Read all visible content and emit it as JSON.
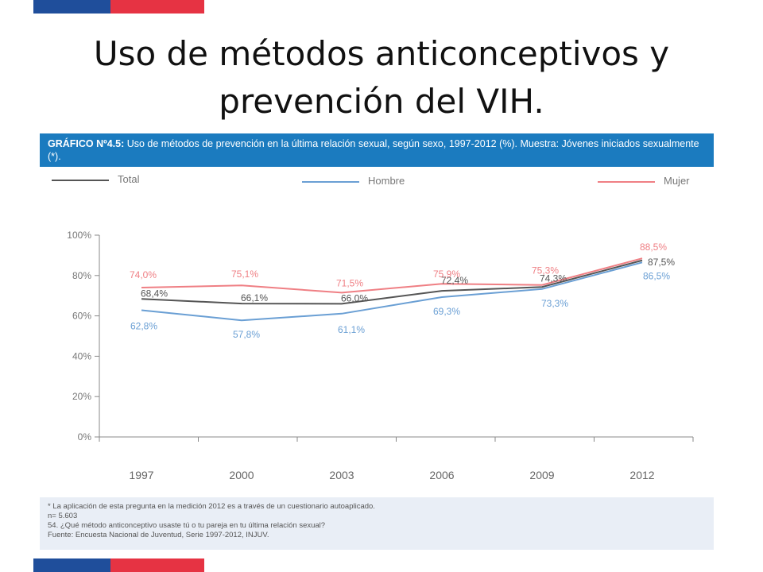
{
  "slide": {
    "title_line1": "Uso de métodos anticonceptivos y",
    "title_line2": "prevención del VIH."
  },
  "header": {
    "label": "GRÁFICO Nº4.5:",
    "text": " Uso de métodos de prevención en la última relación sexual, según sexo, 1997-2012 (%). Muestra: Jóvenes iniciados sexualmente (*)."
  },
  "notes": [
    "* La aplicación de esta pregunta en la medición 2012 es a través de un cuestionario autoaplicado.",
    "n= 5.603",
    "54. ¿Qué método anticonceptivo usaste tú o tu pareja en tu última relación sexual?",
    "Fuente: Encuesta Nacional de Juventud, Serie 1997-2012, INJUV."
  ],
  "colors": {
    "total": "#555555",
    "hombre": "#6a9fd4",
    "mujer": "#ef7f84",
    "header_bg": "#1b7bbf",
    "flag_blue": "#1f4e9b",
    "flag_red": "#e63343"
  },
  "chart_data": {
    "type": "line",
    "title": "",
    "xlabel": "",
    "ylabel": "",
    "ylim": [
      0,
      100
    ],
    "yticks": [
      "0%",
      "20%",
      "40%",
      "60%",
      "80%",
      "100%"
    ],
    "categories": [
      "1997",
      "2000",
      "2003",
      "2006",
      "2009",
      "2012"
    ],
    "legend_position": "top",
    "series": [
      {
        "name": "Total",
        "values": [
          68.4,
          66.1,
          66.0,
          72.4,
          74.3,
          87.5
        ],
        "labels": [
          "68,4%",
          "66,1%",
          "66,0%",
          "72,4%",
          "74,3%",
          "87,5%"
        ]
      },
      {
        "name": "Hombre",
        "values": [
          62.8,
          57.8,
          61.1,
          69.3,
          73.3,
          86.5
        ],
        "labels": [
          "62,8%",
          "57,8%",
          "61,1%",
          "69,3%",
          "73,3%",
          "86,5%"
        ]
      },
      {
        "name": "Mujer",
        "values": [
          74.0,
          75.1,
          71.5,
          75.9,
          75.3,
          88.5
        ],
        "labels": [
          "74,0%",
          "75,1%",
          "71,5%",
          "75,9%",
          "75,3%",
          "88,5%"
        ]
      }
    ]
  }
}
